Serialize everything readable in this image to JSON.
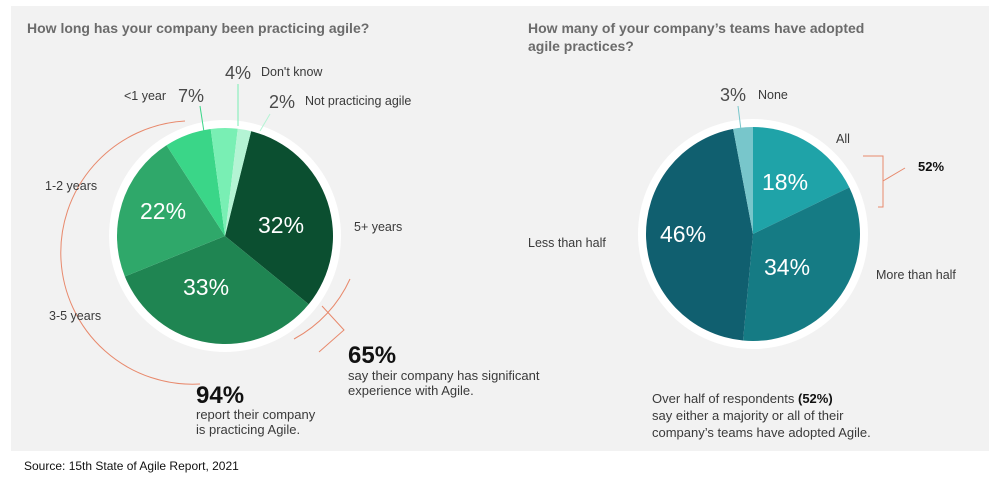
{
  "chart_data": [
    {
      "type": "pie",
      "title": "How long has your company been practicing agile?",
      "slices": [
        {
          "label": "5+ years",
          "value": 32,
          "text": "32%",
          "color": "#0b4f30"
        },
        {
          "label": "3-5 years",
          "value": 33,
          "text": "33%",
          "color": "#1f8552"
        },
        {
          "label": "1-2 years",
          "value": 22,
          "text": "22%",
          "color": "#2fa86a"
        },
        {
          "label": "<1 year",
          "value": 7,
          "text": "7%",
          "color": "#3ad688"
        },
        {
          "label": "Don't know",
          "value": 4,
          "text": "4%",
          "color": "#79efb4"
        },
        {
          "label": "Not practicing agile",
          "value": 2,
          "text": "2%",
          "color": "#b4f4d4"
        }
      ],
      "callouts": {
        "experienced": {
          "value": "65%",
          "line1": "say their company has significant",
          "line2": "experience with Agile."
        },
        "practicing": {
          "value": "94%",
          "line1": "report their company",
          "line2": "is practicing Agile."
        }
      }
    },
    {
      "type": "pie",
      "title_line1": "How many of your company’s teams have adopted",
      "title_line2": "agile practices?",
      "slices": [
        {
          "label": "All",
          "value": 18,
          "text": "18%",
          "color": "#1fa3a8"
        },
        {
          "label": "More than half",
          "value": 34,
          "text": "34%",
          "color": "#157b84"
        },
        {
          "label": "Less than half",
          "value": 46,
          "text": "46%",
          "color": "#105f6f"
        },
        {
          "label": "None",
          "value": 3,
          "text": "3%",
          "color": "#78c6cb"
        }
      ],
      "callouts": {
        "bracket": "52%",
        "note_line1_pre": "Over half of respondents ",
        "note_line1_bold": "(52%)",
        "note_line2": "say either a majority or all of their",
        "note_line3": "company’s teams have adopted Agile."
      }
    }
  ],
  "footer": {
    "source": "Source: 15th State of Agile Report, 2021"
  }
}
